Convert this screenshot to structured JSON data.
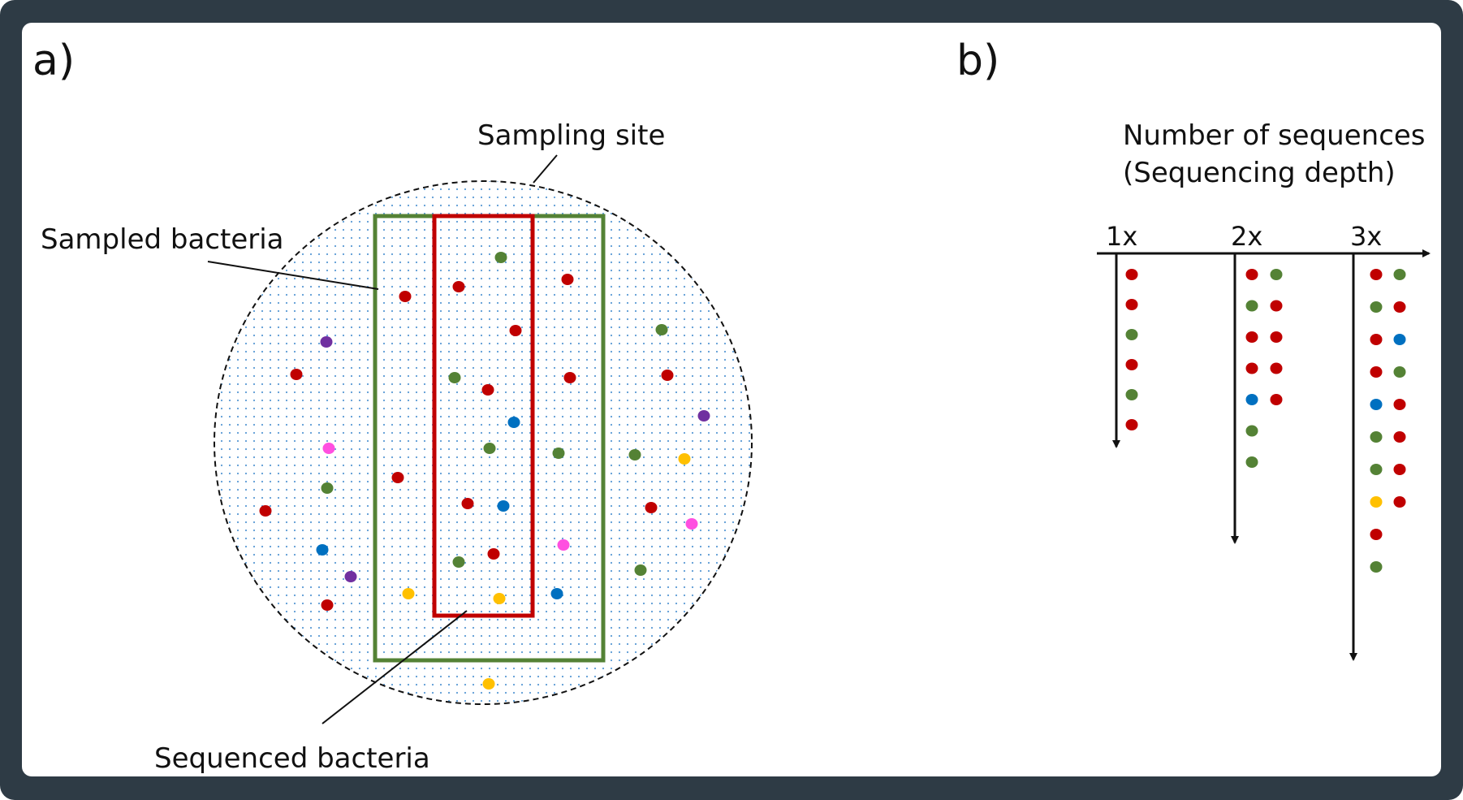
{
  "panels": {
    "a": {
      "label": "a)",
      "sampling_site_label": "Sampling site",
      "sampled_label": "Sampled bacteria",
      "sequenced_label": "Sequenced bacteria"
    },
    "b": {
      "label": "b)",
      "title_line1": "Number of sequences",
      "title_line2": "(Sequencing depth)",
      "depths": [
        {
          "label": "1x",
          "columns": [
            [
              "red",
              "red",
              "green",
              "red",
              "green",
              "red"
            ]
          ]
        },
        {
          "label": "2x",
          "columns": [
            [
              "red",
              "green",
              "red",
              "red",
              "blue",
              "green",
              "green"
            ],
            [
              "green",
              "red",
              "red",
              "red",
              "red"
            ]
          ]
        },
        {
          "label": "3x",
          "columns": [
            [
              "red",
              "green",
              "red",
              "red",
              "blue",
              "green",
              "green",
              "yellow",
              "red",
              "green"
            ],
            [
              "green",
              "red",
              "blue",
              "green",
              "red",
              "red",
              "red",
              "red"
            ]
          ]
        }
      ]
    }
  },
  "colors": {
    "frame": "#2e3b45",
    "red": "#c00000",
    "green": "#548235",
    "blue": "#0070c0",
    "purple": "#7030a0",
    "pink": "#ff4fe0",
    "yellow": "#ffc000",
    "sampled_box": "#548235",
    "sequenced_box": "#c00000",
    "site_dots": "#5b9bd5"
  },
  "bacteria_colors": [
    "green",
    "red",
    "red",
    "red",
    "purple",
    "green",
    "red",
    "red",
    "green",
    "red",
    "red",
    "red",
    "blue",
    "purple",
    "pink",
    "green",
    "green",
    "green",
    "yellow",
    "red",
    "red",
    "green",
    "red",
    "blue",
    "red",
    "pink",
    "blue",
    "pink",
    "red",
    "green",
    "purple",
    "green",
    "yellow",
    "yellow",
    "blue",
    "red",
    "yellow"
  ]
}
